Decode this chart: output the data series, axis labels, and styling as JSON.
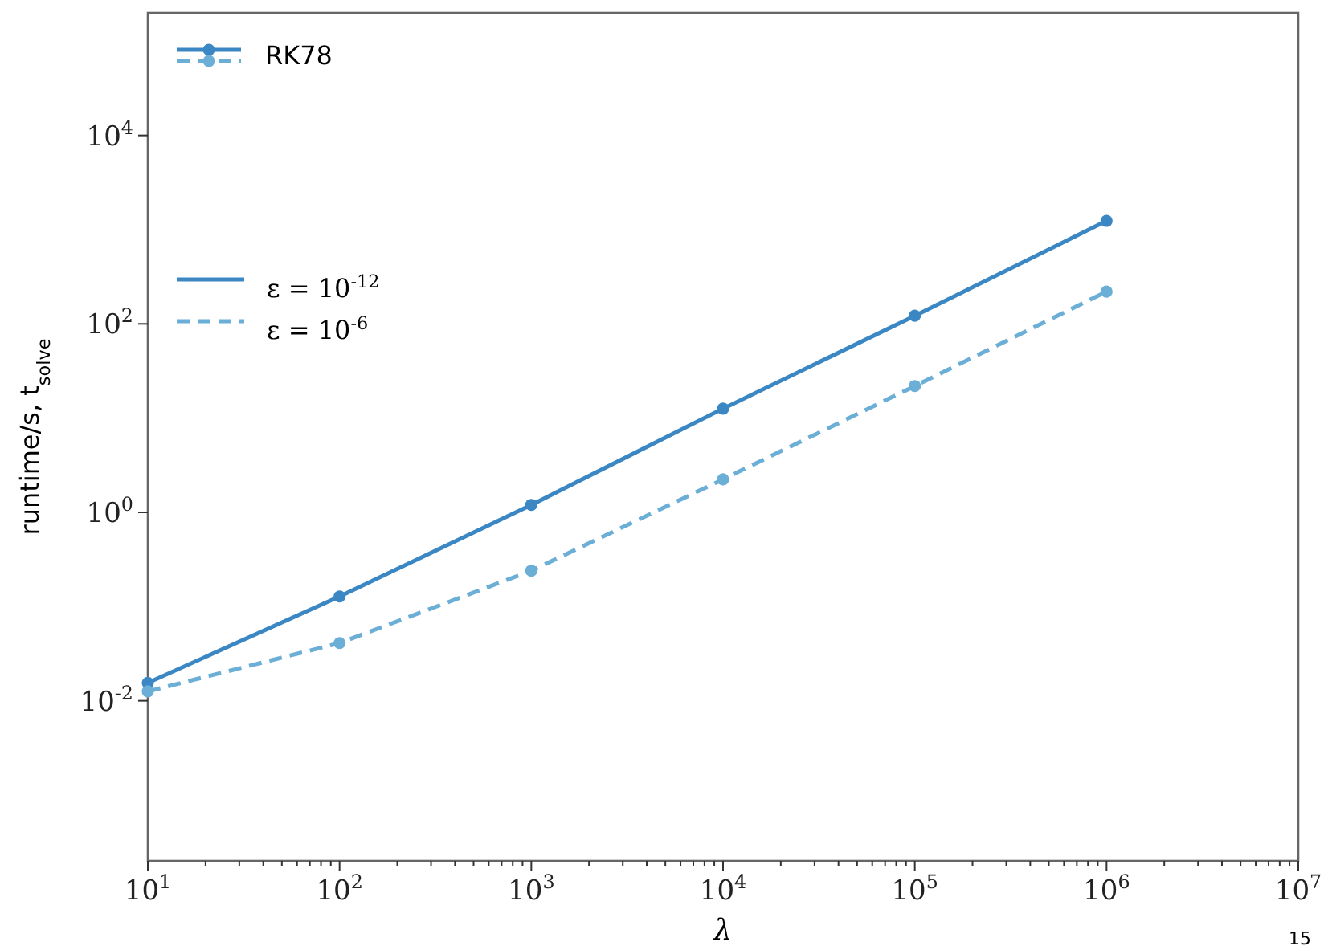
{
  "chart_data": {
    "type": "line",
    "xlabel": "λ",
    "ylabel": "runtime/s, t$_{solve}$",
    "legend_title": "RK78",
    "annotations": [
      "15"
    ],
    "x": [
      10,
      100,
      1000,
      10000,
      100000,
      1000000
    ],
    "series": [
      {
        "name": "ε = 10$^{-12}$",
        "color": "#3a87c4",
        "line_style": "solid",
        "values": [
          0.0155,
          0.128,
          1.2,
          12.6,
          122,
          1240
        ]
      },
      {
        "name": "ε = 10$^{-6}$",
        "color": "#6baed6",
        "line_style": "dashed",
        "values": [
          0.0126,
          0.041,
          0.24,
          2.24,
          21.9,
          220
        ]
      }
    ],
    "marker": "circle",
    "log": "xy",
    "grid": false,
    "legend": "top left",
    "xlim": [
      10,
      10000000
    ],
    "ylim": [
      0.0002,
      200000
    ],
    "xticks": [
      {
        "value": 10,
        "label": "10$^{1}$"
      },
      {
        "value": 100,
        "label": "10$^{2}$"
      },
      {
        "value": 1000,
        "label": "10$^{3}$"
      },
      {
        "value": 10000,
        "label": "10$^{4}$"
      },
      {
        "value": 100000,
        "label": "10$^{5}$"
      },
      {
        "value": 1000000,
        "label": "10$^{6}$"
      },
      {
        "value": 10000000,
        "label": "10$^{7}$"
      }
    ],
    "yticks": [
      {
        "value": 0.01,
        "label": "10$^{-2}$"
      },
      {
        "value": 1,
        "label": "10$^{0}$"
      },
      {
        "value": 100,
        "label": "10$^{2}$"
      },
      {
        "value": 10000,
        "label": "10$^{4}$"
      }
    ]
  }
}
